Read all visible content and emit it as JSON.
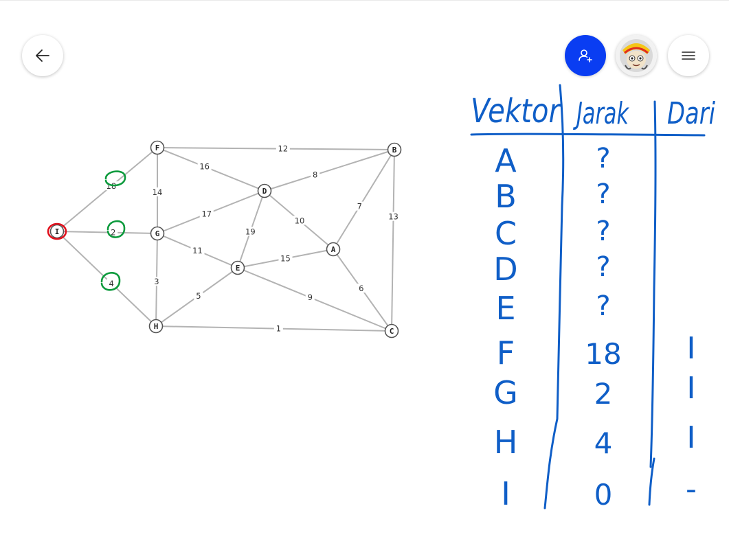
{
  "toolbar": {
    "back_icon": "arrow-left-icon",
    "invite_icon": "add-person-icon",
    "menu_icon": "hamburger-menu-icon",
    "avatar_alt": "user-avatar",
    "accent_color": "#0a3df2"
  },
  "graph": {
    "nodes": [
      "F",
      "B",
      "D",
      "I",
      "G",
      "A",
      "E",
      "H",
      "C"
    ],
    "edges": [
      {
        "from": "F",
        "to": "B",
        "weight": "12"
      },
      {
        "from": "F",
        "to": "D",
        "weight": "16"
      },
      {
        "from": "F",
        "to": "G",
        "weight": "14"
      },
      {
        "from": "F",
        "to": "I",
        "weight": "18"
      },
      {
        "from": "D",
        "to": "B",
        "weight": "8"
      },
      {
        "from": "G",
        "to": "D",
        "weight": "17"
      },
      {
        "from": "D",
        "to": "E",
        "weight": "19"
      },
      {
        "from": "D",
        "to": "A",
        "weight": "10"
      },
      {
        "from": "A",
        "to": "B",
        "weight": "7"
      },
      {
        "from": "B",
        "to": "C",
        "weight": "13"
      },
      {
        "from": "I",
        "to": "G",
        "weight": "2"
      },
      {
        "from": "G",
        "to": "E",
        "weight": "11"
      },
      {
        "from": "E",
        "to": "A",
        "weight": "15"
      },
      {
        "from": "A",
        "to": "C",
        "weight": "6"
      },
      {
        "from": "I",
        "to": "H",
        "weight": "4"
      },
      {
        "from": "G",
        "to": "H",
        "weight": "3"
      },
      {
        "from": "H",
        "to": "E",
        "weight": "5"
      },
      {
        "from": "E",
        "to": "C",
        "weight": "9"
      },
      {
        "from": "H",
        "to": "C",
        "weight": "1"
      }
    ],
    "start_node_color": "#e0101c",
    "highlight_color": "#0c9a3c"
  },
  "table": {
    "headers": [
      "Vektor",
      "Jarak",
      "Dari"
    ],
    "rows": [
      {
        "vektor": "A",
        "jarak": "?",
        "dari": ""
      },
      {
        "vektor": "B",
        "jarak": "?",
        "dari": ""
      },
      {
        "vektor": "C",
        "jarak": "?",
        "dari": ""
      },
      {
        "vektor": "D",
        "jarak": "?",
        "dari": ""
      },
      {
        "vektor": "E",
        "jarak": "?",
        "dari": ""
      },
      {
        "vektor": "F",
        "jarak": "18",
        "dari": "I"
      },
      {
        "vektor": "G",
        "jarak": "2",
        "dari": "I"
      },
      {
        "vektor": "H",
        "jarak": "4",
        "dari": "I"
      },
      {
        "vektor": "I",
        "jarak": "0",
        "dari": "-"
      }
    ],
    "ink_color": "#0f5ec7"
  }
}
